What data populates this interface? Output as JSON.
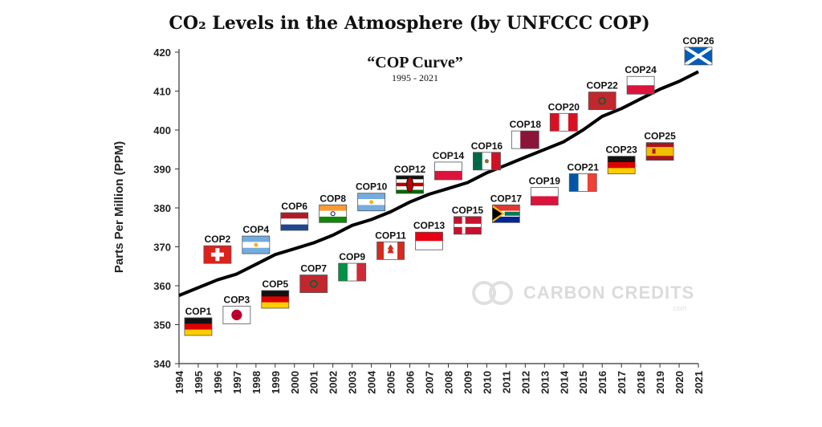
{
  "chart_data": {
    "type": "line",
    "title": "CO₂ Levels in the Atmosphere (by UNFCCC COP)",
    "subtitle": "“COP Curve”",
    "subsubtitle": "1995 - 2021",
    "ylabel": "Parts Per Million (PPM)",
    "xlabel": "",
    "ylim": [
      340,
      420
    ],
    "xlim": [
      1994,
      2021
    ],
    "yticks": [
      "340",
      "350",
      "360",
      "370",
      "380",
      "390",
      "400",
      "410",
      "420"
    ],
    "xticks": [
      "1994",
      "1995",
      "1996",
      "1997",
      "1998",
      "1999",
      "2000",
      "2001",
      "2002",
      "2003",
      "2004",
      "2005",
      "2006",
      "2007",
      "2008",
      "2009",
      "2010",
      "2011",
      "2012",
      "2013",
      "2014",
      "2015",
      "2016",
      "2017",
      "2018",
      "2019",
      "2020",
      "2021"
    ],
    "line_color": "#000000",
    "series": [
      {
        "x": [
          1994,
          1995,
          1996,
          1997,
          1998,
          1999,
          2000,
          2001,
          2002,
          2003,
          2004,
          2005,
          2006,
          2007,
          2008,
          2009,
          2010,
          2011,
          2012,
          2013,
          2014,
          2015,
          2016,
          2017,
          2018,
          2019,
          2020,
          2021
        ],
        "values": [
          357.5,
          359.5,
          361.5,
          363.0,
          365.5,
          368.0,
          369.5,
          371.0,
          373.0,
          375.5,
          377.0,
          379.0,
          381.5,
          383.5,
          385.0,
          386.5,
          389.0,
          391.0,
          393.0,
          395.0,
          397.0,
          400.0,
          403.5,
          405.5,
          408.0,
          410.5,
          412.5,
          415.0
        ]
      }
    ],
    "annotations": [
      {
        "label": "COP1",
        "year": 1995,
        "flag": "germany",
        "ppm": 349.5
      },
      {
        "label": "COP2",
        "year": 1996,
        "flag": "switzerland",
        "ppm": 368.0
      },
      {
        "label": "COP3",
        "year": 1997,
        "flag": "japan",
        "ppm": 352.5
      },
      {
        "label": "COP4",
        "year": 1998,
        "flag": "argentina",
        "ppm": 370.5
      },
      {
        "label": "COP5",
        "year": 1999,
        "flag": "germany",
        "ppm": 356.5
      },
      {
        "label": "COP6",
        "year": 2000,
        "flag": "netherlands",
        "ppm": 376.5
      },
      {
        "label": "COP7",
        "year": 2001,
        "flag": "morocco",
        "ppm": 360.5
      },
      {
        "label": "COP8",
        "year": 2002,
        "flag": "india",
        "ppm": 378.5
      },
      {
        "label": "COP9",
        "year": 2003,
        "flag": "italy",
        "ppm": 363.5
      },
      {
        "label": "COP10",
        "year": 2004,
        "flag": "argentina",
        "ppm": 381.5
      },
      {
        "label": "COP11",
        "year": 2005,
        "flag": "canada",
        "ppm": 369.0
      },
      {
        "label": "COP12",
        "year": 2006,
        "flag": "kenya",
        "ppm": 386.0
      },
      {
        "label": "COP13",
        "year": 2007,
        "flag": "indonesia",
        "ppm": 371.5
      },
      {
        "label": "COP14",
        "year": 2008,
        "flag": "poland",
        "ppm": 389.5
      },
      {
        "label": "COP15",
        "year": 2009,
        "flag": "denmark",
        "ppm": 375.5
      },
      {
        "label": "COP16",
        "year": 2010,
        "flag": "mexico",
        "ppm": 392.0
      },
      {
        "label": "COP17",
        "year": 2011,
        "flag": "southafrica",
        "ppm": 378.5
      },
      {
        "label": "COP18",
        "year": 2012,
        "flag": "qatar",
        "ppm": 397.5
      },
      {
        "label": "COP19",
        "year": 2013,
        "flag": "poland",
        "ppm": 383.0
      },
      {
        "label": "COP20",
        "year": 2014,
        "flag": "peru",
        "ppm": 402.0
      },
      {
        "label": "COP21",
        "year": 2015,
        "flag": "france",
        "ppm": 386.5
      },
      {
        "label": "COP22",
        "year": 2016,
        "flag": "morocco",
        "ppm": 407.5
      },
      {
        "label": "COP23",
        "year": 2017,
        "flag": "germany",
        "ppm": 391.0
      },
      {
        "label": "COP24",
        "year": 2018,
        "flag": "poland",
        "ppm": 411.5
      },
      {
        "label": "COP25",
        "year": 2019,
        "flag": "spain",
        "ppm": 394.5
      },
      {
        "label": "COP26",
        "year": 2021,
        "flag": "scotland",
        "ppm": 419.0
      }
    ],
    "grid": false,
    "legend": "none"
  },
  "watermark": {
    "brand": "CARBON CREDITS",
    "domain": ".com"
  },
  "colors": {
    "line": "#000000",
    "axis": "#333333",
    "watermark": "#d8d8d8"
  }
}
